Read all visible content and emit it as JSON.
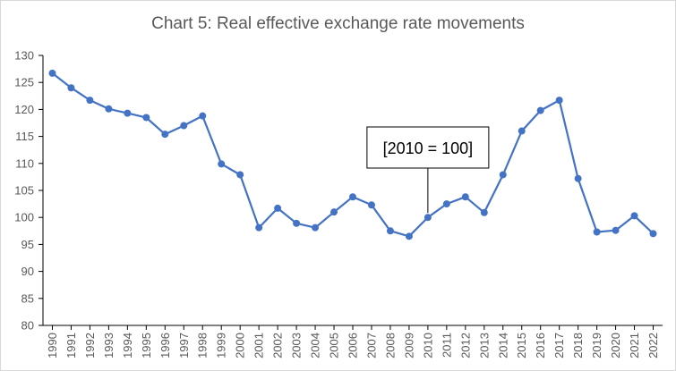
{
  "chart_data": {
    "type": "line",
    "title": "Chart 5: Real effective exchange rate movements",
    "xlabel": "",
    "ylabel": "",
    "ylim": [
      80,
      130
    ],
    "yticks": [
      80,
      85,
      90,
      95,
      100,
      105,
      110,
      115,
      120,
      125,
      130
    ],
    "categories": [
      "1990",
      "1991",
      "1992",
      "1993",
      "1994",
      "1995",
      "1996",
      "1997",
      "1998",
      "1999",
      "2000",
      "2001",
      "2002",
      "2003",
      "2004",
      "2005",
      "2006",
      "2007",
      "2008",
      "2009",
      "2010",
      "2011",
      "2012",
      "2013",
      "2014",
      "2015",
      "2016",
      "2017",
      "2018",
      "2019",
      "2020",
      "2021",
      "2022"
    ],
    "values": [
      126.7,
      124.0,
      121.7,
      120.1,
      119.3,
      118.5,
      115.4,
      117.0,
      118.8,
      109.9,
      107.9,
      98.1,
      101.7,
      98.9,
      98.1,
      101.0,
      103.8,
      102.3,
      97.5,
      96.5,
      100.0,
      102.5,
      103.8,
      100.9,
      107.9,
      116.0,
      119.8,
      121.7,
      107.2,
      97.3,
      97.6,
      100.3,
      97.0
    ],
    "grid": false,
    "legend": "none",
    "line_color": "#4472c4",
    "annotation": {
      "text": "[2010 = 100]",
      "category": "2010"
    }
  }
}
